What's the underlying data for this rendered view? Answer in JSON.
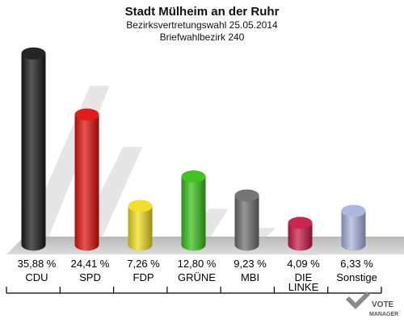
{
  "chart_data": {
    "type": "bar",
    "title": "Stadt Mülheim an der Ruhr",
    "subtitle_lines": [
      "Bezirksvertretungswahl 25.05.2014",
      "Briefwahlbezirk 240"
    ],
    "categories": [
      [
        "CDU"
      ],
      [
        "SPD"
      ],
      [
        "FDP"
      ],
      [
        "GRÜNE"
      ],
      [
        "MBI"
      ],
      [
        "DIE",
        "LINKE"
      ],
      [
        "Sonstige"
      ]
    ],
    "values": [
      35.88,
      24.41,
      7.26,
      12.8,
      9.23,
      4.09,
      6.33
    ],
    "value_labels": [
      "35,88 %",
      "24,41 %",
      "7,26 %",
      "12,80 %",
      "9,23 %",
      "4,09 %",
      "6,33 %"
    ],
    "colors": [
      "#1a1a1a",
      "#e01010",
      "#f0de20",
      "#38c018",
      "#6e6e6e",
      "#c81a48",
      "#a8b4dc"
    ],
    "ylim": [
      0,
      40
    ],
    "grid": false,
    "legend": "none"
  },
  "logo": {
    "line1": "VOTE",
    "line2": "MANAGER"
  }
}
